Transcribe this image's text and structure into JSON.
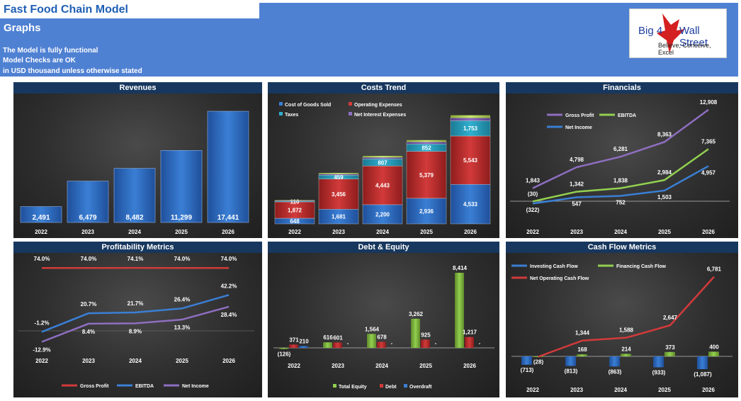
{
  "header": {
    "title": "Fast Food Chain Model",
    "subtitle": "Graphs",
    "note1": "The Model is fully functional",
    "note2": "Model Checks are OK",
    "note3": "in USD thousand unless otherwise stated",
    "logo": {
      "line1": "Big 4",
      "line2": "Wall Street",
      "tagline": "Believe, Conceive, Excel"
    }
  },
  "colors": {
    "header_band": "#4f81d3",
    "panel_title": "#17375e",
    "blue": "#3a7fd5",
    "red": "#d23a3a",
    "green": "#92d050",
    "cyan": "#31b0d0",
    "purple": "#8e6ec0",
    "lightgreen": "#c8e86a"
  },
  "chart_data": [
    {
      "title": "Revenues",
      "type": "bar",
      "categories": [
        "2022",
        "2023",
        "2024",
        "2025",
        "2026"
      ],
      "values": [
        2491,
        6479,
        8482,
        11299,
        17441
      ],
      "labels": [
        "2,491",
        "6,479",
        "8,482",
        "11,299",
        "17,441"
      ]
    },
    {
      "title": "Costs Trend",
      "type": "bar",
      "stacked": true,
      "categories": [
        "2022",
        "2023",
        "2024",
        "2025",
        "2026"
      ],
      "series": [
        {
          "name": "Cost of Goods Sold",
          "values": [
            648,
            1681,
            2200,
            2936,
            4533
          ],
          "labels": [
            "648",
            "1,681",
            "2,200",
            "2,936",
            "4,533"
          ]
        },
        {
          "name": "Operating Expenses",
          "values": [
            1872,
            3456,
            4443,
            5379,
            5543
          ],
          "labels": [
            "1,872",
            "3,456",
            "4,443",
            "5,379",
            "5,543"
          ]
        },
        {
          "name": "Taxes",
          "values": [
            110,
            459,
            807,
            852,
            1753
          ],
          "labels": [
            "110",
            "459",
            "807",
            "852",
            "1,753"
          ]
        },
        {
          "name": "Net Interest Expenses",
          "values": [
            60,
            130,
            180,
            240,
            330
          ],
          "labels": [
            "",
            "",
            "",
            "",
            ""
          ]
        }
      ],
      "extra_series_color": "#c8e86a",
      "extra_values": [
        40,
        120,
        170,
        200,
        300
      ]
    },
    {
      "title": "Financials",
      "type": "line",
      "categories": [
        "2022",
        "2023",
        "2024",
        "2025",
        "2026"
      ],
      "series": [
        {
          "name": "Gross Profit",
          "values": [
            1843,
            4798,
            6281,
            8363,
            12908
          ],
          "labels": [
            "1,843",
            "4,798",
            "6,281",
            "8,363",
            "12,908"
          ]
        },
        {
          "name": "EBITDA",
          "values": [
            -30,
            1342,
            1838,
            2984,
            7365
          ],
          "labels": [
            "(30)",
            "1,342",
            "1,838",
            "2,984",
            "7,365"
          ]
        },
        {
          "name": "Net Income",
          "values": [
            -322,
            547,
            752,
            1503,
            4957
          ],
          "labels": [
            "(322)",
            "547",
            "752",
            "1,503",
            "4,957"
          ]
        }
      ]
    },
    {
      "title": "Profitability Metrics",
      "type": "line",
      "categories": [
        "2022",
        "2023",
        "2024",
        "2025",
        "2026"
      ],
      "series": [
        {
          "name": "Gross Profit",
          "values": [
            74.0,
            74.0,
            74.1,
            74.0,
            74.0
          ],
          "labels": [
            "74.0%",
            "74.0%",
            "74.1%",
            "74.0%",
            "74.0%"
          ]
        },
        {
          "name": "EBITDA",
          "values": [
            -1.2,
            20.7,
            21.7,
            26.4,
            42.2
          ],
          "labels": [
            "-1.2%",
            "20.7%",
            "21.7%",
            "26.4%",
            "42.2%"
          ]
        },
        {
          "name": "Net Income",
          "values": [
            -12.9,
            8.4,
            8.9,
            13.3,
            28.4
          ],
          "labels": [
            "-12.9%",
            "8.4%",
            "8.9%",
            "13.3%",
            "28.4%"
          ]
        }
      ]
    },
    {
      "title": "Debt & Equity",
      "type": "bar",
      "categories": [
        "2022",
        "2023",
        "2024",
        "2025",
        "2026"
      ],
      "series": [
        {
          "name": "Total Equity",
          "values": [
            -126,
            616,
            1564,
            3262,
            8414
          ],
          "labels": [
            "(126)",
            "616",
            "1,564",
            "3,262",
            "8,414"
          ]
        },
        {
          "name": "Debt",
          "values": [
            371,
            601,
            678,
            925,
            1217
          ],
          "labels": [
            "371",
            "601",
            "678",
            "925",
            "1,217"
          ]
        },
        {
          "name": "Overdraft",
          "values": [
            210,
            0,
            0,
            0,
            0
          ],
          "labels": [
            "210",
            "-",
            "-",
            "-",
            "-"
          ]
        }
      ]
    },
    {
      "title": "Cash Flow Metrics",
      "type": "bar",
      "categories": [
        "2022",
        "2023",
        "2024",
        "2025",
        "2026"
      ],
      "series": [
        {
          "name": "Investing Cash Flow",
          "values": [
            -713,
            -813,
            -863,
            -933,
            -1087
          ],
          "labels": [
            "(713)",
            "(813)",
            "(863)",
            "(933)",
            "(1,087)"
          ]
        },
        {
          "name": "Financing Cash Flow",
          "values": [
            -28,
            168,
            214,
            373,
            400
          ],
          "labels": [
            "(28)",
            "168",
            "214",
            "373",
            "400"
          ]
        },
        {
          "name": "Net Operating Cash Flow",
          "type": "line",
          "values": [
            -28,
            1344,
            1588,
            2647,
            6781
          ],
          "labels": [
            "",
            "1,344",
            "1,588",
            "2,647",
            "6,781"
          ]
        }
      ]
    }
  ]
}
